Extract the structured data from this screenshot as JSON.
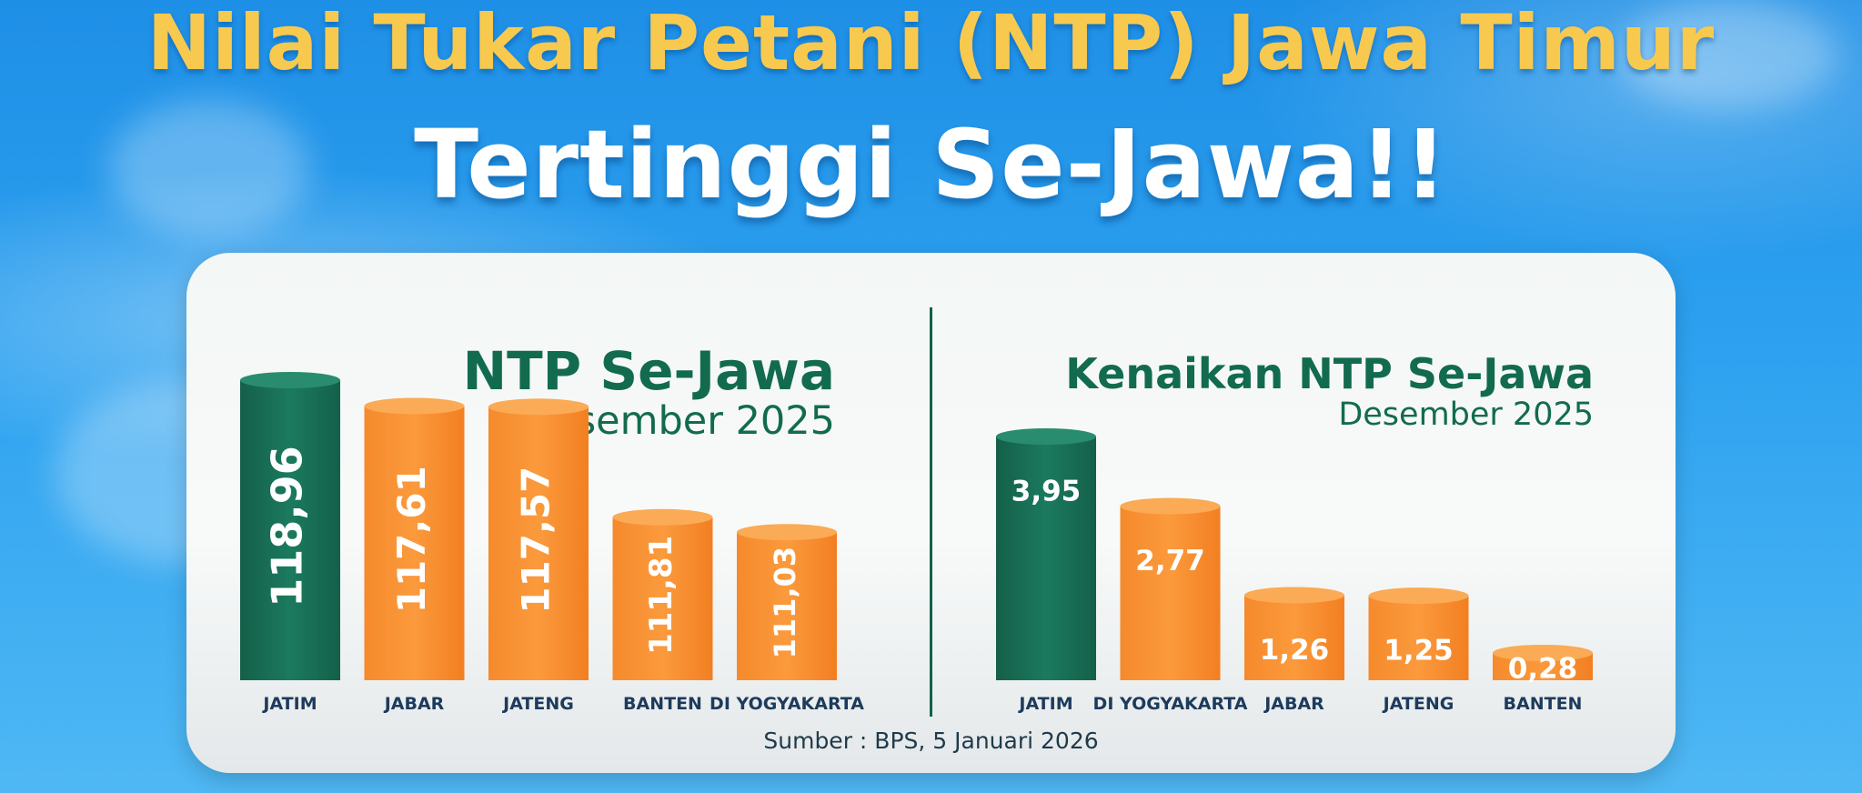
{
  "headline": {
    "line1": "Nilai Tukar Petani (NTP) Jawa Timur",
    "line2": "Tertinggi Se-Jawa!!"
  },
  "source": "Sumber : BPS, 5 Januari 2026",
  "colors": {
    "highlight": "#1b7a5e",
    "bar": "#f7892d",
    "text": "#136b4f",
    "label": "#1d3b5c"
  },
  "chart_data": [
    {
      "type": "bar",
      "title": "NTP Se-Jawa",
      "subtitle": "Desember 2025",
      "categories": [
        "JATIM",
        "JABAR",
        "JATENG",
        "BANTEN",
        "DI YOGYAKARTA"
      ],
      "values": [
        118.96,
        117.61,
        117.57,
        111.81,
        111.03
      ],
      "value_labels": [
        "118,96",
        "117,61",
        "117,57",
        "111,81",
        "111,03"
      ],
      "highlight_index": 0
    },
    {
      "type": "bar",
      "title": "Kenaikan NTP Se-Jawa",
      "subtitle": "Desember 2025",
      "categories": [
        "JATIM",
        "DI YOGYAKARTA",
        "JABAR",
        "JATENG",
        "BANTEN"
      ],
      "values": [
        3.95,
        2.77,
        1.26,
        1.25,
        0.28
      ],
      "value_labels": [
        "3,95",
        "2,77",
        "1,26",
        "1,25",
        "0,28"
      ],
      "highlight_index": 0
    }
  ]
}
